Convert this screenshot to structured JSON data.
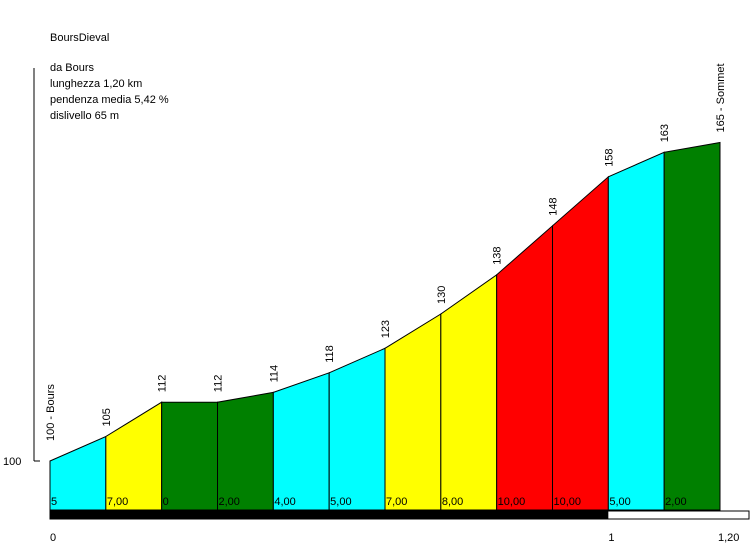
{
  "chart_data": {
    "type": "area",
    "title": "BoursDieval",
    "info": [
      "da Bours",
      "lunghezza 1,20 km",
      "pendenza media 5,42 %",
      "dislivello 65 m"
    ],
    "ylabel_tick": "100",
    "x_ticks": [
      "0",
      "1",
      "1,20"
    ],
    "km_total": 1.2,
    "y_base": 100,
    "x": [
      0,
      0.1,
      0.2,
      0.3,
      0.4,
      0.5,
      0.6,
      0.7,
      0.8,
      0.9,
      1.0,
      1.1,
      1.2
    ],
    "elevation": [
      100,
      105,
      112,
      112,
      114,
      118,
      123,
      130,
      138,
      148,
      158,
      163,
      165
    ],
    "point_labels": [
      "100 - Bours",
      "105",
      "112",
      "112",
      "114",
      "118",
      "123",
      "130",
      "138",
      "148",
      "158",
      "163",
      "165 - Sommet"
    ],
    "gradients": [
      "5",
      "7,00",
      "0",
      "2,00",
      "4,00",
      "5,00",
      "7,00",
      "8,00",
      "10,00",
      "10,00",
      "5,00",
      "2,00"
    ],
    "gradient_colors": [
      "#00ffff",
      "#ffff00",
      "#008000",
      "#008000",
      "#00ffff",
      "#00ffff",
      "#ffff00",
      "#ffff00",
      "#ff0000",
      "#ff0000",
      "#00ffff",
      "#008000"
    ],
    "km_bar_colors": [
      "#000000",
      "#ffffff"
    ]
  }
}
